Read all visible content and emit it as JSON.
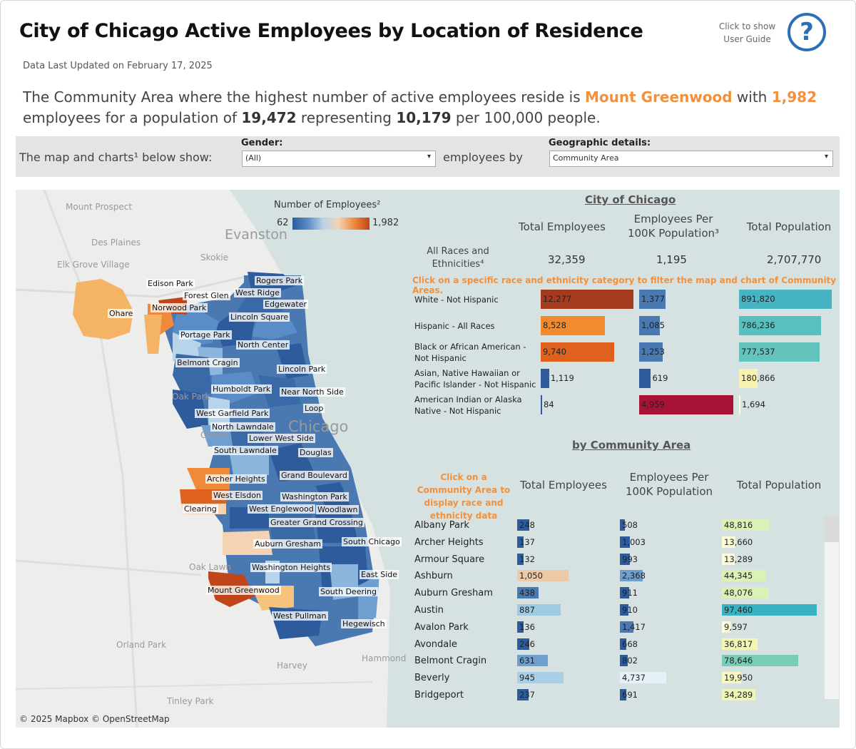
{
  "header": {
    "title": "City of Chicago Active Employees by Location of Residence",
    "updated": "Data Last Updated on February 17, 2025",
    "help_text": "Click to show User Guide",
    "help_glyph": "?"
  },
  "summary": {
    "p1": "The Community Area where the highest number of active employees reside is ",
    "area": "Mount Greenwood",
    "p2": " with ",
    "count": "1,982",
    "p3": " employees for a population of ",
    "population": "19,472",
    "p4": " representing ",
    "rate": "10,179",
    "p5": " per 100,000 people."
  },
  "filters": {
    "lead": "The map and charts¹  below show:",
    "gender_label": "Gender:",
    "gender_value": "(All)",
    "mid": "employees by",
    "geo_label": "Geographic details:",
    "geo_value": "Community Area",
    "arrow": "▾"
  },
  "map": {
    "legend_title": "Number of Employees²",
    "legend_min": "62",
    "legend_max": "1,982",
    "attribution": "© 2025 Mapbox  © OpenStreetMap",
    "region_labels": [
      "Edison Park",
      "Rogers Park",
      "Forest Glen",
      "West Ridge",
      "Edgewater",
      "Norwood Park",
      "Ohare",
      "Lincoln Square",
      "Portage Park",
      "North Center",
      "Belmont Cragin",
      "Lincoln Park",
      "Humboldt Park",
      "Near North Side",
      "Loop",
      "West Garfield Park",
      "North Lawndale",
      "Lower West Side",
      "South Lawndale",
      "Douglas",
      "Grand Boulevard",
      "Archer Heights",
      "West Elsdon",
      "Washington Park",
      "Clearing",
      "West Englewood",
      "Woodlawn",
      "Greater Grand Crossing",
      "Auburn Gresham",
      "South Chicago",
      "Washington Heights",
      "East Side",
      "Mount Greenwood",
      "South Deering",
      "West Pullman",
      "Hegewisch"
    ],
    "background_labels": [
      "Mount Prospect",
      "Des Plaines",
      "Elk Grove Village",
      "Evanston",
      "Skokie",
      "Oak Park",
      "Cicero",
      "Chicago",
      "Oak Lawn",
      "Orland Park",
      "Harvey",
      "Hammond",
      "Tinley Park"
    ]
  },
  "city": {
    "title": "City of Chicago",
    "col_total": "Total Employees",
    "col_per": "Employees Per 100K Population³",
    "col_pop": "Total Population",
    "all_label": "All Races and Ethnicities⁴",
    "all_total": "32,359",
    "all_per": "1,195",
    "all_pop": "2,707,770",
    "instruction": "Click on a specific race and ethnicity category to filter the map and chart of Community Areas."
  },
  "colors": {
    "accent": "#f2913d",
    "help_blue": "#2c6fb6",
    "panel_bg": "#d6e2e2"
  },
  "chart_data": [
    {
      "type": "bar",
      "title": "City of Chicago",
      "categories": [
        "White - Not Hispanic",
        "Hispanic - All Races",
        "Black or African American - Not Hispanic",
        "Asian, Native Hawaiian or Pacific Islander - Not Hispanic",
        "American Indian or Alaska Native - Not Hispanic"
      ],
      "series": [
        {
          "name": "Total Employees",
          "values": [
            12277,
            8528,
            9740,
            1119,
            84
          ],
          "labels": [
            "12,277",
            "8,528",
            "9,740",
            "1,119",
            "84"
          ],
          "colors": [
            "#a53b1e",
            "#f28a2e",
            "#e0601d",
            "#2d5b9c",
            "#2d5b9c"
          ]
        },
        {
          "name": "Employees Per 100K Population",
          "values": [
            1377,
            1085,
            1253,
            619,
            4959
          ],
          "labels": [
            "1,377",
            "1,085",
            "1,253",
            "619",
            "4,959"
          ],
          "colors": [
            "#4a78b0",
            "#4a78b0",
            "#4a78b0",
            "#2d5b9c",
            "#a81237"
          ]
        },
        {
          "name": "Total Population",
          "values": [
            891820,
            786236,
            777537,
            180866,
            1694
          ],
          "labels": [
            "891,820",
            "786,236",
            "777,537",
            "180,866",
            "1,694"
          ],
          "colors": [
            "#46b4c2",
            "#59c0bf",
            "#62c4bc",
            "#f6f3b2",
            "#f8f9e0"
          ]
        }
      ]
    },
    {
      "type": "bar",
      "title": "by Community Area",
      "click_text": "Click on a Community Area to display race and ethnicity data",
      "categories": [
        "Albany Park",
        "Archer Heights",
        "Armour Square",
        "Ashburn",
        "Auburn Gresham",
        "Austin",
        "Avalon Park",
        "Avondale",
        "Belmont Cragin",
        "Beverly",
        "Bridgeport"
      ],
      "series": [
        {
          "name": "Total Employees",
          "values": [
            248,
            137,
            132,
            1050,
            438,
            887,
            136,
            246,
            631,
            945,
            237
          ],
          "labels": [
            "248",
            "137",
            "132",
            "1,050",
            "438",
            "887",
            "136",
            "246",
            "631",
            "945",
            "237"
          ],
          "colors": [
            "#2d5b9c",
            "#2d5b9c",
            "#2d5b9c",
            "#edc9a7",
            "#4a78b0",
            "#9ecae3",
            "#2d5b9c",
            "#2d5b9c",
            "#6f9fcf",
            "#a8cfe6",
            "#2d5b9c"
          ]
        },
        {
          "name": "Employees Per 100K Population",
          "values": [
            508,
            1003,
            993,
            2368,
            911,
            910,
            1417,
            668,
            802,
            4737,
            691
          ],
          "labels": [
            "508",
            "1,003",
            "993",
            "2,368",
            "911",
            "910",
            "1,417",
            "668",
            "802",
            "4,737",
            "691"
          ],
          "colors": [
            "#2d5b9c",
            "#2d5b9c",
            "#2d5b9c",
            "#6f9fcf",
            "#2d5b9c",
            "#2d5b9c",
            "#4a78b0",
            "#2d5b9c",
            "#2d5b9c",
            "#e6f0f8",
            "#2d5b9c"
          ]
        },
        {
          "name": "Total Population",
          "values": [
            48816,
            13660,
            13289,
            44345,
            48076,
            97460,
            9597,
            36817,
            78646,
            19950,
            34289
          ],
          "labels": [
            "48,816",
            "13,660",
            "13,289",
            "44,345",
            "48,076",
            "97,460",
            "9,597",
            "36,817",
            "78,646",
            "19,950",
            "34,289"
          ],
          "colors": [
            "#dbf1b8",
            "#fbfbd9",
            "#fbfbd9",
            "#dbf1b8",
            "#dbf1b8",
            "#3bb2c2",
            "#fbfbdc",
            "#f4f6b3",
            "#79cdb5",
            "#f8f8c0",
            "#eef5b6"
          ]
        }
      ]
    }
  ]
}
